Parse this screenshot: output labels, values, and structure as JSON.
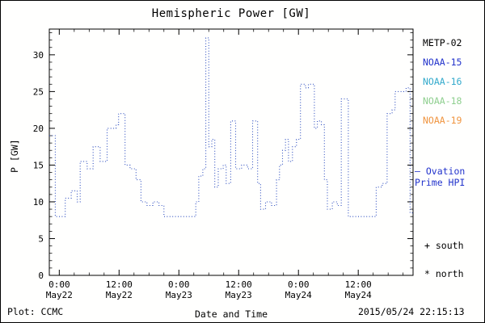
{
  "title": "Hemispheric Power [GW]",
  "legend": {
    "position": "right",
    "items": [
      {
        "label": "METP-02",
        "color": "#000000"
      },
      {
        "label": "NOAA-15",
        "color": "#2233cc"
      },
      {
        "label": "NOAA-16",
        "color": "#33aacc"
      },
      {
        "label": "NOAA-18",
        "color": "#8fcf8f"
      },
      {
        "label": "NOAA-19",
        "color": "#f09540"
      }
    ]
  },
  "ovation": {
    "line1": "— Ovation",
    "line2": "Prime HPI",
    "color": "#2233cc"
  },
  "markers": {
    "south_symbol": "+",
    "south_label": "south",
    "north_symbol": "*",
    "north_label": "north"
  },
  "footer": {
    "credit": "Plot: CCMC",
    "timestamp": "2015/05/24 22:15:13"
  },
  "chart_data": {
    "type": "line",
    "line_style": "dotted-step",
    "title": "Hemispheric Power [GW]",
    "xlabel": "Date and Time",
    "ylabel": "P [GW]",
    "ylim": [
      0,
      33.5
    ],
    "xlim_hours": [
      -2,
      71
    ],
    "yticks": [
      0,
      5,
      10,
      15,
      20,
      25,
      30
    ],
    "xticks": [
      {
        "hour": 0,
        "time": "0:00",
        "date": "May22"
      },
      {
        "hour": 12,
        "time": "12:00",
        "date": "May22"
      },
      {
        "hour": 24,
        "time": "0:00",
        "date": "May23"
      },
      {
        "hour": 36,
        "time": "12:00",
        "date": "May23"
      },
      {
        "hour": 48,
        "time": "0:00",
        "date": "May24"
      },
      {
        "hour": 60,
        "time": "12:00",
        "date": "May24"
      }
    ],
    "grid": false,
    "legend_entries": [
      "METP-02",
      "NOAA-15",
      "NOAA-16",
      "NOAA-18",
      "NOAA-19"
    ],
    "annotations": [
      "— Ovation Prime HPI",
      "+ south",
      "* north"
    ],
    "series": [
      {
        "name": "Ovation Prime HPI",
        "color": "#2f4fc0",
        "units": "GW",
        "time_units": "hours from May22 00:00",
        "steps": [
          [
            -2,
            19
          ],
          [
            -0.8,
            8
          ],
          [
            1.2,
            10.5
          ],
          [
            2.4,
            11.5
          ],
          [
            3.6,
            10
          ],
          [
            4.2,
            15.5
          ],
          [
            5.6,
            14.5
          ],
          [
            6.8,
            17.5
          ],
          [
            8.2,
            15.5
          ],
          [
            9.6,
            20
          ],
          [
            11.4,
            20.5
          ],
          [
            11.9,
            22
          ],
          [
            13.2,
            15
          ],
          [
            14.2,
            14.5
          ],
          [
            15.4,
            13
          ],
          [
            16.4,
            10
          ],
          [
            17.6,
            9.5
          ],
          [
            18.8,
            10
          ],
          [
            20,
            9.5
          ],
          [
            21,
            8
          ],
          [
            27.4,
            10
          ],
          [
            28,
            13.5
          ],
          [
            28.8,
            14.5
          ],
          [
            29.4,
            32.3
          ],
          [
            30,
            17.5
          ],
          [
            30.6,
            18.5
          ],
          [
            31.2,
            12
          ],
          [
            31.9,
            14.5
          ],
          [
            32.9,
            15
          ],
          [
            33.5,
            12.5
          ],
          [
            34.4,
            21
          ],
          [
            35.4,
            14.5
          ],
          [
            36.6,
            15
          ],
          [
            37.8,
            14.5
          ],
          [
            38.8,
            21
          ],
          [
            39.8,
            12.5
          ],
          [
            40.4,
            9
          ],
          [
            41.4,
            10
          ],
          [
            42.6,
            9.5
          ],
          [
            43.6,
            13
          ],
          [
            44.2,
            15
          ],
          [
            44.8,
            17
          ],
          [
            45.4,
            18.5
          ],
          [
            46,
            15.5
          ],
          [
            46.8,
            17.5
          ],
          [
            47.6,
            18.5
          ],
          [
            48.4,
            26
          ],
          [
            49.4,
            25.5
          ],
          [
            50,
            26
          ],
          [
            51.2,
            20
          ],
          [
            51.8,
            21
          ],
          [
            52.6,
            20.5
          ],
          [
            53.2,
            13
          ],
          [
            53.8,
            9
          ],
          [
            54.8,
            10
          ],
          [
            55.8,
            9.5
          ],
          [
            56.6,
            24
          ],
          [
            58,
            8
          ],
          [
            63.6,
            12
          ],
          [
            64.8,
            12.5
          ],
          [
            65.8,
            22
          ],
          [
            66.8,
            22.5
          ],
          [
            67.4,
            25
          ],
          [
            69.6,
            25.5
          ],
          [
            70.4,
            8.5
          ]
        ]
      }
    ]
  }
}
